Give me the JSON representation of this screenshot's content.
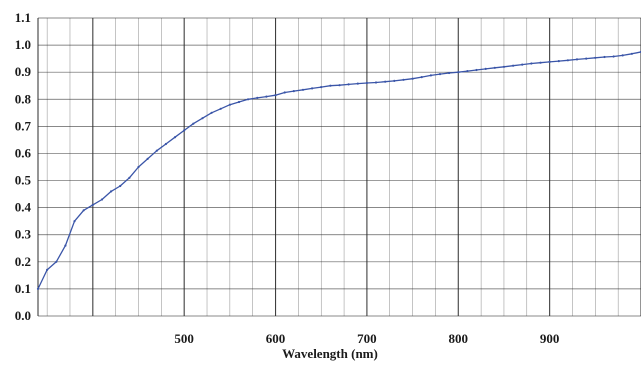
{
  "chart_data": {
    "type": "line",
    "title": "",
    "xlabel": "Wavelength (nm)",
    "ylabel": "",
    "xlim": [
      340,
      1000
    ],
    "ylim": [
      0.0,
      1.1
    ],
    "x_ticks": [
      500,
      600,
      700,
      800,
      900
    ],
    "x_tick_labels": [
      "500",
      "600",
      "700",
      "800",
      "900"
    ],
    "y_ticks": [
      0.0,
      0.1,
      0.2,
      0.3,
      0.4,
      0.5,
      0.6,
      0.7,
      0.8,
      0.9,
      1.0,
      1.1
    ],
    "y_tick_labels": [
      "0.0",
      "0.1",
      "0.2",
      "0.3",
      "0.4",
      "0.5",
      "0.6",
      "0.7",
      "0.8",
      "0.9",
      "1.0",
      "1.1"
    ],
    "grid": true,
    "legend": "none",
    "colors": {
      "line": "#3a55a8",
      "grid": "#2b2b2b",
      "axis_text": "#1a1a1a"
    },
    "series": [
      {
        "x": [
          340,
          350,
          360,
          370,
          380,
          390,
          400,
          410,
          420,
          430,
          440,
          450,
          460,
          470,
          480,
          490,
          500,
          510,
          520,
          530,
          540,
          550,
          560,
          570,
          580,
          590,
          600,
          610,
          620,
          630,
          640,
          650,
          660,
          670,
          680,
          690,
          700,
          710,
          720,
          730,
          740,
          750,
          760,
          770,
          780,
          790,
          800,
          810,
          820,
          830,
          840,
          850,
          860,
          870,
          880,
          890,
          900,
          910,
          920,
          930,
          940,
          950,
          960,
          970,
          980,
          990,
          1000
        ],
        "values": [
          0.1,
          0.17,
          0.2,
          0.26,
          0.35,
          0.39,
          0.41,
          0.43,
          0.46,
          0.48,
          0.51,
          0.55,
          0.58,
          0.61,
          0.635,
          0.66,
          0.685,
          0.71,
          0.73,
          0.75,
          0.765,
          0.78,
          0.79,
          0.8,
          0.805,
          0.81,
          0.815,
          0.825,
          0.83,
          0.835,
          0.84,
          0.845,
          0.85,
          0.852,
          0.855,
          0.858,
          0.86,
          0.862,
          0.865,
          0.868,
          0.872,
          0.876,
          0.882,
          0.888,
          0.893,
          0.897,
          0.9,
          0.904,
          0.908,
          0.912,
          0.916,
          0.92,
          0.924,
          0.928,
          0.932,
          0.935,
          0.938,
          0.941,
          0.944,
          0.947,
          0.95,
          0.953,
          0.956,
          0.958,
          0.962,
          0.968,
          0.975
        ]
      }
    ]
  }
}
